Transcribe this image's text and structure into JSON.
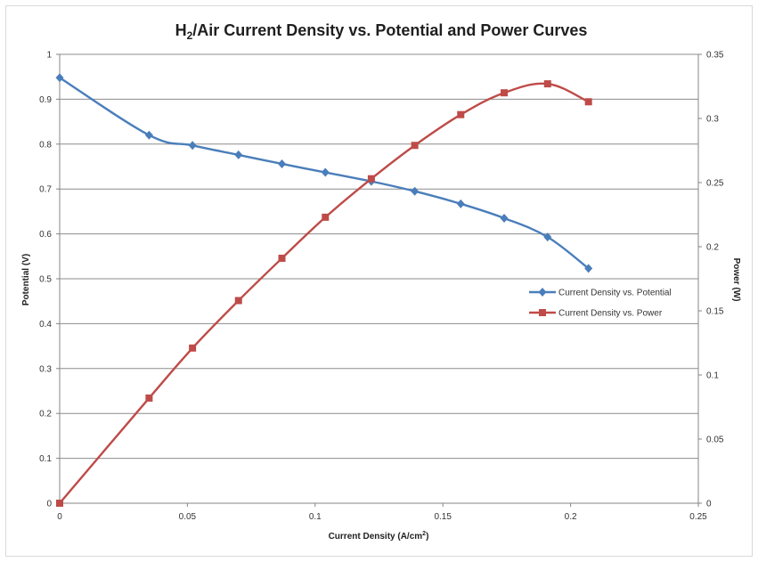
{
  "chart_data": {
    "type": "line",
    "title_main": "H",
    "title_sub": "2",
    "title_rest": "/Air Current Density vs. Potential and Power Curves",
    "xlabel_main": "Current Density (A/cm",
    "xlabel_sup": "2",
    "xlabel_end": ")",
    "ylabel_left": "Potential (V)",
    "ylabel_right": "Power (W)",
    "xlim": [
      0,
      0.25
    ],
    "ylim_left": [
      0,
      1
    ],
    "ylim_right": [
      0,
      0.35
    ],
    "x_ticks": [
      "0",
      "0.05",
      "0.1",
      "0.15",
      "0.2",
      "0.25"
    ],
    "y_left_ticks": [
      "0",
      "0.1",
      "0.2",
      "0.3",
      "0.4",
      "0.5",
      "0.6",
      "0.7",
      "0.8",
      "0.9",
      "1"
    ],
    "y_right_ticks": [
      "0",
      "0.05",
      "0.1",
      "0.15",
      "0.2",
      "0.25",
      "0.3",
      "0.35"
    ],
    "grid": true,
    "legend_position": "right-middle",
    "series": [
      {
        "name": "Current Density vs. Potential",
        "axis": "left",
        "color": "#4a7ebb",
        "marker": "diamond",
        "x": [
          0,
          0.035,
          0.052,
          0.07,
          0.087,
          0.104,
          0.122,
          0.139,
          0.157,
          0.174,
          0.191,
          0.207
        ],
        "y": [
          0.948,
          0.82,
          0.797,
          0.776,
          0.756,
          0.737,
          0.717,
          0.695,
          0.667,
          0.635,
          0.593,
          0.523
        ]
      },
      {
        "name": "Current Density vs. Power",
        "axis": "right",
        "color": "#be4b48",
        "marker": "square",
        "x": [
          0,
          0.035,
          0.052,
          0.07,
          0.087,
          0.104,
          0.122,
          0.139,
          0.157,
          0.174,
          0.191,
          0.207
        ],
        "y": [
          0,
          0.082,
          0.121,
          0.158,
          0.191,
          0.223,
          0.253,
          0.279,
          0.303,
          0.32,
          0.327,
          0.313
        ]
      }
    ]
  }
}
